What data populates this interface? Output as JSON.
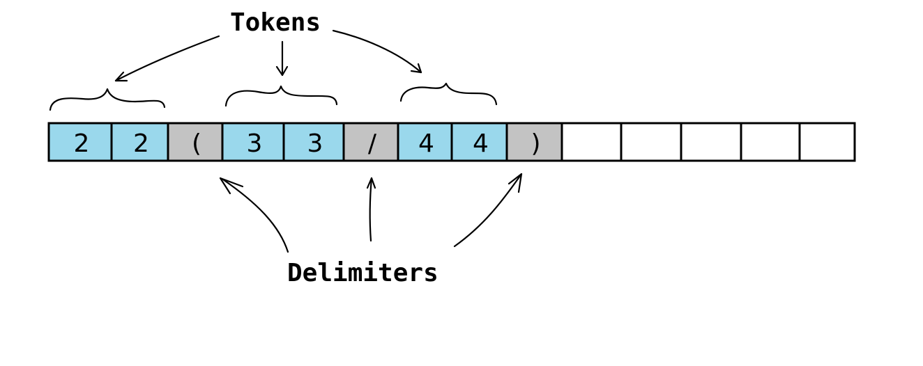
{
  "labels": {
    "tokens": "Tokens",
    "delimiters": "Delimiters"
  },
  "cells": [
    {
      "text": "2",
      "kind": "token"
    },
    {
      "text": "2",
      "kind": "token"
    },
    {
      "text": "(",
      "kind": "delimiter"
    },
    {
      "text": "3",
      "kind": "token"
    },
    {
      "text": "3",
      "kind": "token"
    },
    {
      "text": "/",
      "kind": "delimiter"
    },
    {
      "text": "4",
      "kind": "token"
    },
    {
      "text": "4",
      "kind": "token"
    },
    {
      "text": ")",
      "kind": "delimiter"
    },
    {
      "text": "",
      "kind": "empty"
    },
    {
      "text": "",
      "kind": "empty"
    },
    {
      "text": "",
      "kind": "empty"
    },
    {
      "text": "",
      "kind": "empty"
    },
    {
      "text": "",
      "kind": "empty"
    }
  ],
  "colors": {
    "token": "#9ad8ec",
    "delimiter": "#c3c3c3",
    "empty": "#ffffff",
    "line": "#000000"
  }
}
